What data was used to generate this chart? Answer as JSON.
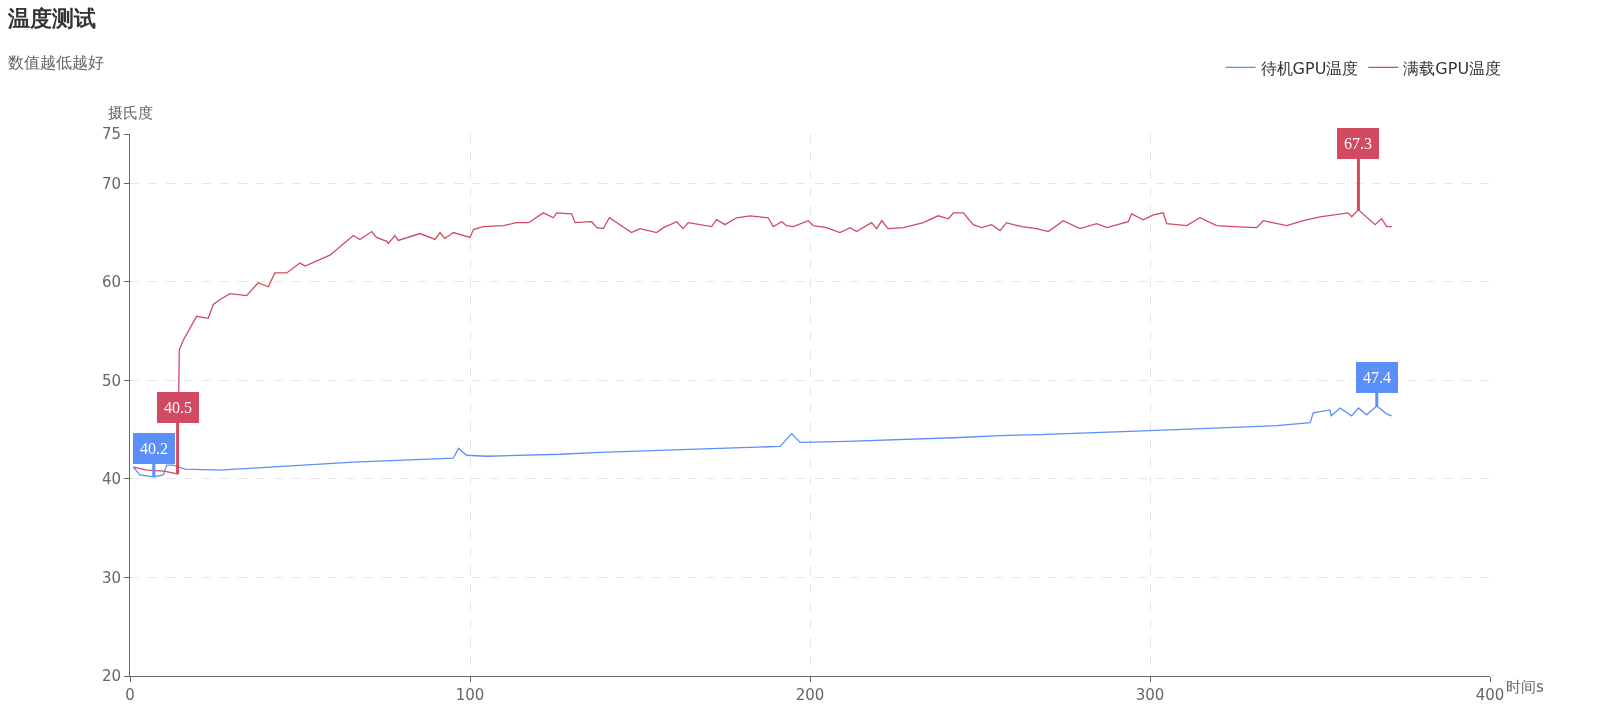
{
  "chart_data": {
    "type": "line",
    "title": "温度测试",
    "subtitle": "数值越低越好",
    "xlabel": "时间s",
    "ylabel": "摄氏度",
    "xlim": [
      0,
      400
    ],
    "xticks": [
      0,
      100,
      200,
      300,
      400
    ],
    "ylim": [
      20,
      75
    ],
    "yticks": [
      20,
      30,
      40,
      50,
      60,
      70,
      75
    ],
    "grid": true,
    "legend": "top right",
    "line_style": "solid",
    "series": [
      {
        "name": "待机GPU温度",
        "color": "#5b8ff9",
        "x": [
          1.0,
          2.9,
          7.0,
          9.8,
          10.8,
          12.7,
          16.2,
          26.5,
          41.2,
          65.7,
          95.1,
          96.6,
          99.0,
          104.9,
          126.5,
          138.2,
          191.2,
          194.6,
          197.1,
          210.8,
          244.1,
          255.9,
          267.6,
          300.0,
          337.3,
          347.1,
          348.0,
          352.9,
          353.3,
          355.9,
          359.3,
          361.3,
          363.7,
          366.7,
          369.6,
          371.1
        ],
        "values": [
          41.2,
          40.4,
          40.2,
          40.4,
          41.4,
          41.4,
          41.0,
          40.9,
          41.2,
          41.7,
          42.1,
          43.1,
          42.4,
          42.3,
          42.5,
          42.7,
          43.3,
          44.6,
          43.7,
          43.8,
          44.2,
          44.4,
          44.5,
          44.9,
          45.4,
          45.7,
          46.7,
          47.0,
          46.4,
          47.2,
          46.4,
          47.2,
          46.5,
          47.4,
          46.6,
          46.4
        ]
      },
      {
        "name": "满载GPU温度",
        "color": "#d14a61",
        "x": [
          1.0,
          5.0,
          10.0,
          14.0,
          14.5,
          15.7,
          19.6,
          23.0,
          24.5,
          26.5,
          29.4,
          34.3,
          37.7,
          40.7,
          42.6,
          46.1,
          50.0,
          51.5,
          58.8,
          65.7,
          67.6,
          71.1,
          72.5,
          75.5,
          76.0,
          77.9,
          78.9,
          85.3,
          89.7,
          91.2,
          92.6,
          95.1,
          100.0,
          101.0,
          103.9,
          109.8,
          113.7,
          117.2,
          121.6,
          124.5,
          125.5,
          129.9,
          130.9,
          135.8,
          137.3,
          139.2,
          141.0,
          147.5,
          150.0,
          154.9,
          156.9,
          160.8,
          162.7,
          164.2,
          171.1,
          172.5,
          175.0,
          178.4,
          182.4,
          187.7,
          189.2,
          191.7,
          193.1,
          195.1,
          199.5,
          201.0,
          204.9,
          208.8,
          211.8,
          213.7,
          218.1,
          219.6,
          221.1,
          223.0,
          227.5,
          233.3,
          237.7,
          240.7,
          242.2,
          245.1,
          248.0,
          250.5,
          253.4,
          255.9,
          257.8,
          259.8,
          262.3,
          266.7,
          270.1,
          274.5,
          279.4,
          284.3,
          287.3,
          293.6,
          294.6,
          298.0,
          301.0,
          303.9,
          304.9,
          310.8,
          314.7,
          319.6,
          324.5,
          331.4,
          333.3,
          340.2,
          345.1,
          350.0,
          358.3,
          359.3,
          361.3,
          366.2,
          368.1,
          369.6,
          371.1
        ],
        "values": [
          41.2,
          40.9,
          40.8,
          40.5,
          53.1,
          54.1,
          56.5,
          56.3,
          57.7,
          58.2,
          58.8,
          58.6,
          59.9,
          59.5,
          60.9,
          60.9,
          61.9,
          61.6,
          62.7,
          64.7,
          64.3,
          65.1,
          64.5,
          64.1,
          63.9,
          64.7,
          64.2,
          64.9,
          64.3,
          65.0,
          64.4,
          65.0,
          64.5,
          65.3,
          65.6,
          65.7,
          66.0,
          66.0,
          67.0,
          66.5,
          67.0,
          66.9,
          66.0,
          66.1,
          65.5,
          65.4,
          66.5,
          65.0,
          65.4,
          65.0,
          65.5,
          66.1,
          65.4,
          66.0,
          65.6,
          66.3,
          65.8,
          66.5,
          66.7,
          66.5,
          65.6,
          66.1,
          65.7,
          65.6,
          66.2,
          65.7,
          65.5,
          65.0,
          65.5,
          65.1,
          66.0,
          65.4,
          66.2,
          65.4,
          65.5,
          66.0,
          66.7,
          66.4,
          67.0,
          67.0,
          65.8,
          65.5,
          65.8,
          65.2,
          66.0,
          65.8,
          65.6,
          65.4,
          65.1,
          66.2,
          65.4,
          65.9,
          65.5,
          66.1,
          66.9,
          66.3,
          66.8,
          67.0,
          65.9,
          65.7,
          66.5,
          65.7,
          65.6,
          65.5,
          66.2,
          65.7,
          66.2,
          66.6,
          67.0,
          66.6,
          67.3,
          65.8,
          66.4,
          65.6,
          65.6
        ]
      }
    ],
    "annotations": [
      {
        "text": "40.2",
        "x": 7.0,
        "y": 40.2
      },
      {
        "text": "47.4",
        "x": 366.7,
        "y": 47.4
      },
      {
        "text": "40.5",
        "x": 14.0,
        "y": 40.5
      },
      {
        "text": "67.3",
        "x": 361.3,
        "y": 67.3
      }
    ]
  }
}
